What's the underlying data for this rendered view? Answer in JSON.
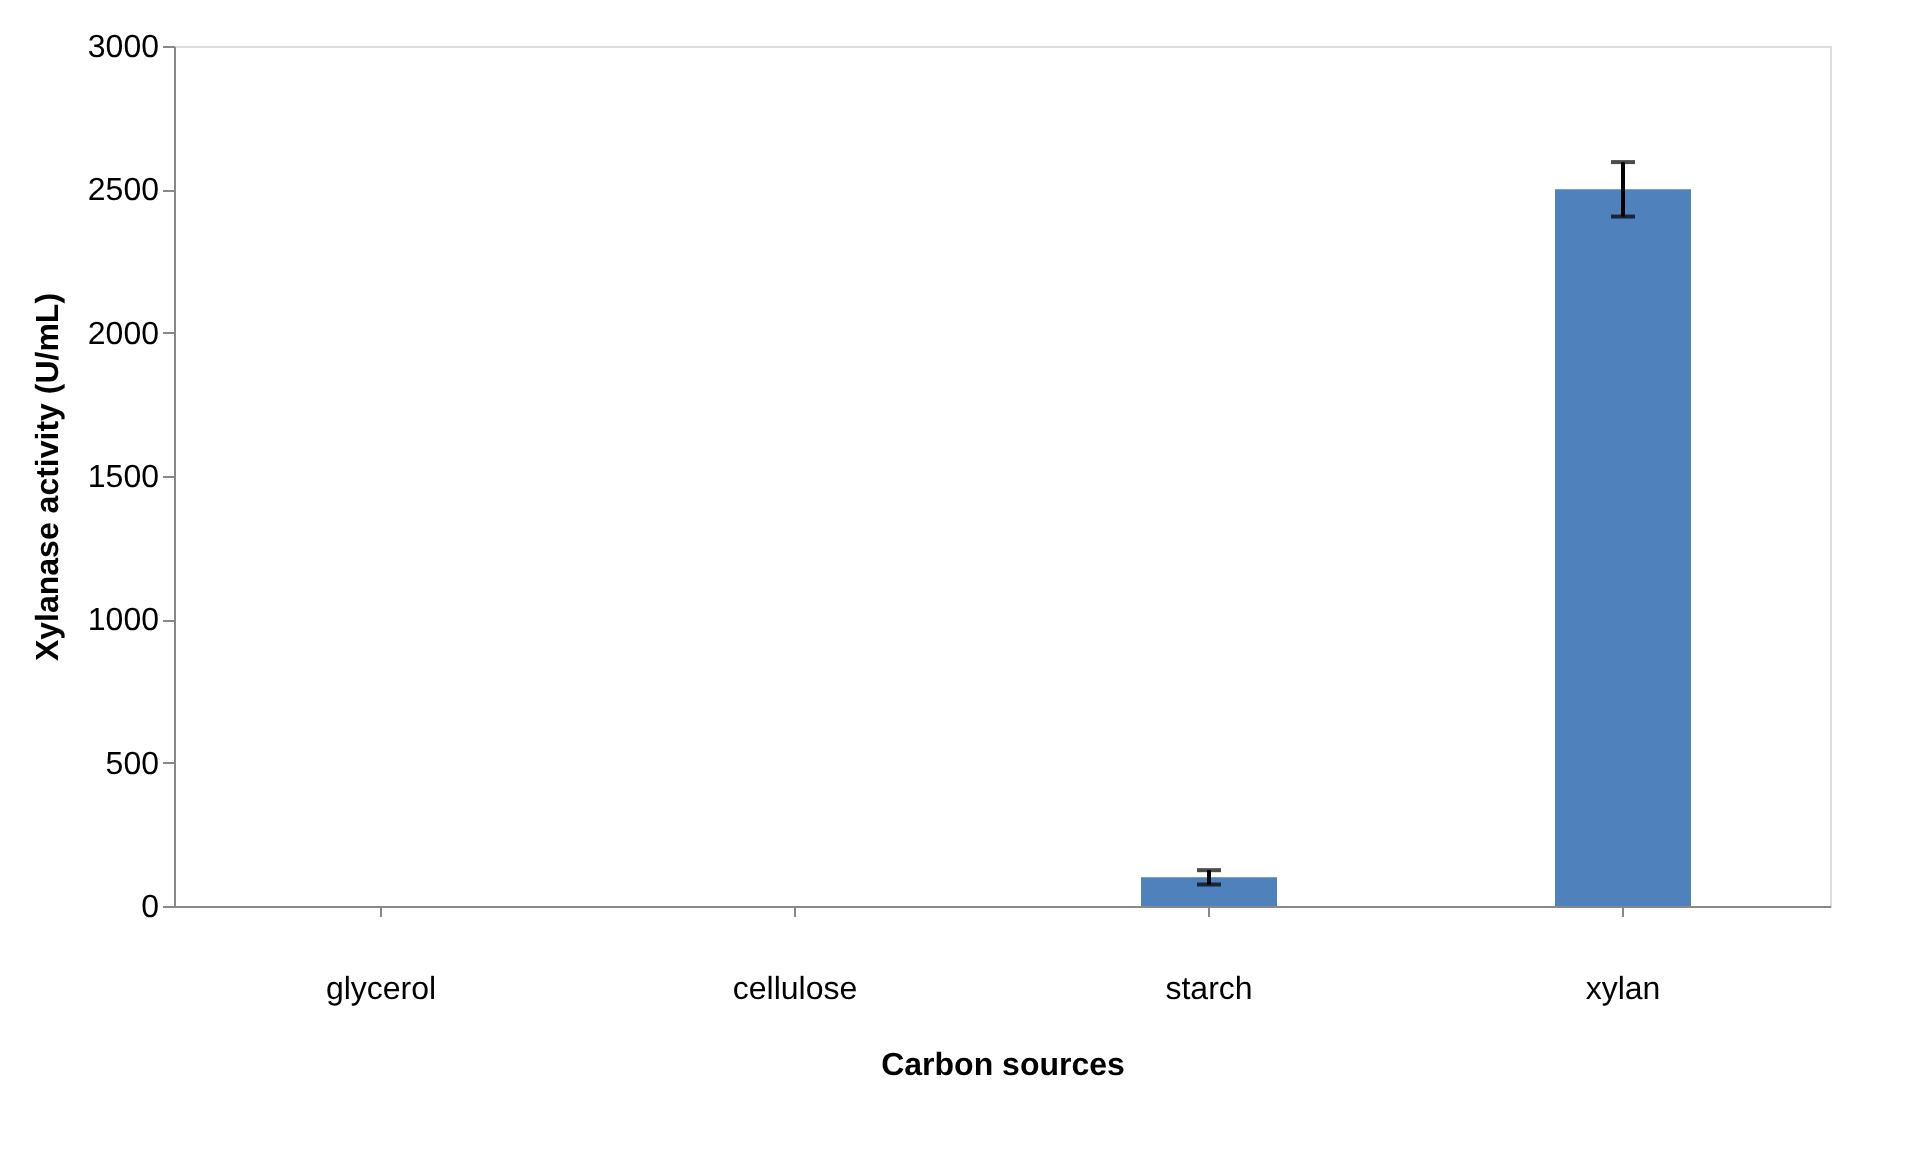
{
  "chart_data": {
    "type": "bar",
    "xlabel": "Carbon sources",
    "ylabel": "Xylanase activity (U/mL)",
    "categories": [
      "glycerol",
      "cellulose",
      "starch",
      "xylan"
    ],
    "values": [
      0,
      0,
      100,
      2500
    ],
    "errors": [
      null,
      null,
      25,
      95
    ],
    "color": "#4f81bd",
    "ylim": [
      0,
      3000
    ],
    "yticks": [
      0,
      500,
      1000,
      1500,
      2000,
      2500,
      3000
    ],
    "grid": false
  }
}
